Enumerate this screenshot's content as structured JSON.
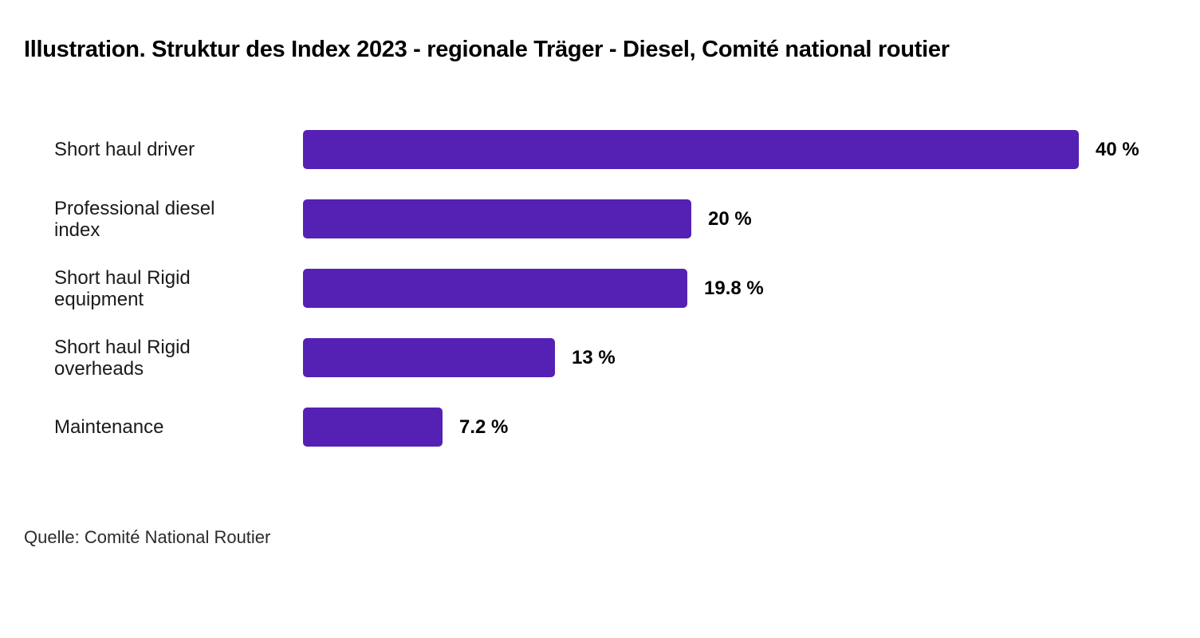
{
  "chart_data": {
    "type": "bar",
    "orientation": "horizontal",
    "title": "Illustration. Struktur des Index 2023 - regionale Träger - Diesel, Comité national routier",
    "source": "Quelle: Comité National Routier",
    "categories": [
      "Short haul driver",
      "Professional diesel index",
      "Short haul Rigid equipment",
      "Short haul Rigid overheads",
      "Maintenance"
    ],
    "values": [
      40,
      20,
      19.8,
      13,
      7.2
    ],
    "value_labels": [
      "40 %",
      "20 %",
      "19.8 %",
      "13 %",
      "7.2 %"
    ],
    "xlim": [
      0,
      40
    ],
    "grid": false,
    "legend": false,
    "bar_color": "#5521b5",
    "label_color": "#1a1a1a",
    "value_color": "#000000",
    "title_color": "#000000",
    "source_color": "#2b2b2b"
  }
}
